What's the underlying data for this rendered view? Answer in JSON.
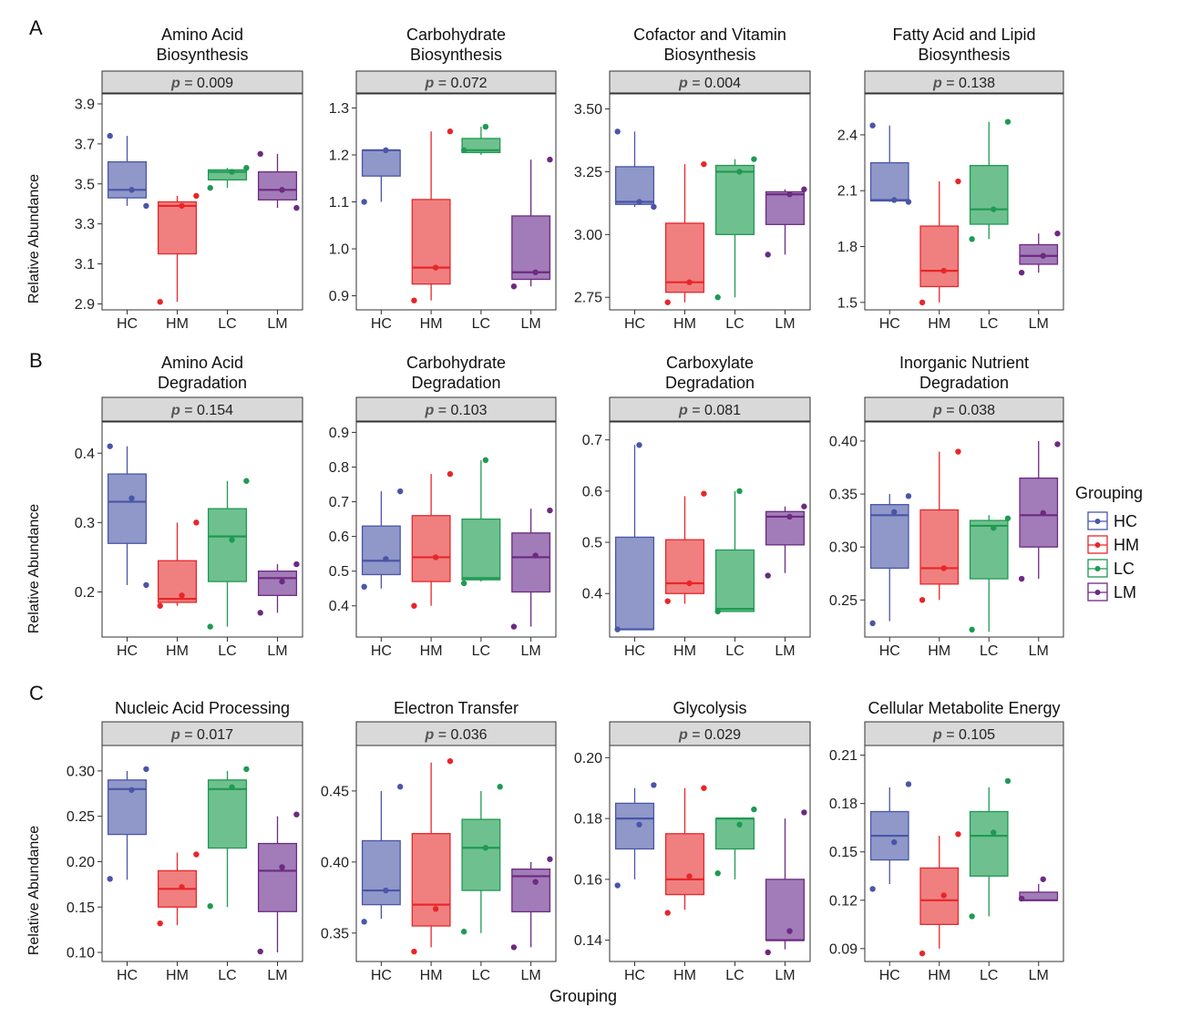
{
  "figure": {
    "panel_letters": [
      "A",
      "B",
      "C"
    ],
    "y_axis_label": "Relative Abundance",
    "x_axis_label": "Grouping",
    "p_prefix": "p",
    "stray_annotation": "p"
  },
  "legend": {
    "title": "Grouping",
    "entries": [
      {
        "name": "HC",
        "color": "#4a55a8",
        "fill": "#8f98c8"
      },
      {
        "name": "HM",
        "color": "#e8262a",
        "fill": "#f08080"
      },
      {
        "name": "LC",
        "color": "#1e9a52",
        "fill": "#6fc08f"
      },
      {
        "name": "LM",
        "color": "#6c2a80",
        "fill": "#a27cb8"
      }
    ]
  },
  "chart_data": [
    {
      "type": "box",
      "row": "A",
      "title": "Amino Acid\nBiosynthesis",
      "p_value": "= 0.009",
      "yticks": [
        2.9,
        3.1,
        3.3,
        3.5,
        3.7,
        3.9
      ],
      "ytick_labels": [
        "2.9",
        "3.1",
        "3.3",
        "3.5",
        "3.7",
        "3.9"
      ],
      "ylim": [
        2.87,
        3.95
      ],
      "categories": [
        "HC",
        "HM",
        "LC",
        "LM"
      ],
      "boxes": [
        {
          "group": "HC",
          "min": 3.39,
          "q1": 3.43,
          "median": 3.47,
          "q3": 3.61,
          "max": 3.74,
          "points": [
            3.74,
            3.47,
            3.39
          ]
        },
        {
          "group": "HM",
          "min": 2.91,
          "q1": 3.15,
          "median": 3.39,
          "q3": 3.41,
          "max": 3.44,
          "points": [
            2.91,
            3.39,
            3.44
          ]
        },
        {
          "group": "LC",
          "min": 3.48,
          "q1": 3.52,
          "median": 3.56,
          "q3": 3.57,
          "max": 3.58,
          "points": [
            3.48,
            3.56,
            3.58
          ]
        },
        {
          "group": "LM",
          "min": 3.38,
          "q1": 3.42,
          "median": 3.47,
          "q3": 3.56,
          "max": 3.65,
          "points": [
            3.65,
            3.47,
            3.38
          ]
        }
      ]
    },
    {
      "type": "box",
      "row": "A",
      "title": "Carbohydrate\nBiosynthesis",
      "p_value": "= 0.072",
      "yticks": [
        0.9,
        1.0,
        1.1,
        1.2,
        1.3
      ],
      "ytick_labels": [
        "0.9",
        "1.0",
        "1.1",
        "1.2",
        "1.3"
      ],
      "ylim": [
        0.87,
        1.33
      ],
      "categories": [
        "HC",
        "HM",
        "LC",
        "LM"
      ],
      "boxes": [
        {
          "group": "HC",
          "min": 1.1,
          "q1": 1.155,
          "median": 1.21,
          "q3": 1.21,
          "max": 1.21,
          "points": [
            1.1,
            1.21
          ]
        },
        {
          "group": "HM",
          "min": 0.89,
          "q1": 0.925,
          "median": 0.96,
          "q3": 1.105,
          "max": 1.25,
          "points": [
            0.89,
            0.96,
            1.25
          ]
        },
        {
          "group": "LC",
          "min": 1.2,
          "q1": 1.205,
          "median": 1.21,
          "q3": 1.235,
          "max": 1.26,
          "points": [
            1.21,
            1.26
          ]
        },
        {
          "group": "LM",
          "min": 0.92,
          "q1": 0.935,
          "median": 0.95,
          "q3": 1.07,
          "max": 1.19,
          "points": [
            0.92,
            0.95,
            1.19
          ]
        }
      ]
    },
    {
      "type": "box",
      "row": "A",
      "title": "Cofactor and Vitamin\nBiosynthesis",
      "p_value": "= 0.004",
      "yticks": [
        2.75,
        3.0,
        3.25,
        3.5
      ],
      "ytick_labels": [
        "2.75",
        "3.00",
        "3.25",
        "3.50"
      ],
      "ylim": [
        2.7,
        3.56
      ],
      "categories": [
        "HC",
        "HM",
        "LC",
        "LM"
      ],
      "boxes": [
        {
          "group": "HC",
          "min": 3.11,
          "q1": 3.12,
          "median": 3.13,
          "q3": 3.27,
          "max": 3.41,
          "points": [
            3.41,
            3.13,
            3.11
          ]
        },
        {
          "group": "HM",
          "min": 2.73,
          "q1": 2.77,
          "median": 2.81,
          "q3": 3.045,
          "max": 3.28,
          "points": [
            2.73,
            2.81,
            3.28
          ]
        },
        {
          "group": "LC",
          "min": 2.75,
          "q1": 3.0,
          "median": 3.25,
          "q3": 3.275,
          "max": 3.3,
          "points": [
            2.75,
            3.25,
            3.3
          ]
        },
        {
          "group": "LM",
          "min": 2.92,
          "q1": 3.04,
          "median": 3.16,
          "q3": 3.17,
          "max": 3.18,
          "points": [
            2.92,
            3.16,
            3.18
          ]
        }
      ]
    },
    {
      "type": "box",
      "row": "A",
      "title": "Fatty Acid and Lipid\nBiosynthesis",
      "p_value": "= 0.138",
      "yticks": [
        1.5,
        1.8,
        2.1,
        2.4
      ],
      "ytick_labels": [
        "1.5",
        "1.8",
        "2.1",
        "2.4"
      ],
      "ylim": [
        1.46,
        2.62
      ],
      "categories": [
        "HC",
        "HM",
        "LC",
        "LM"
      ],
      "boxes": [
        {
          "group": "HC",
          "min": 2.04,
          "q1": 2.045,
          "median": 2.05,
          "q3": 2.25,
          "max": 2.45,
          "points": [
            2.45,
            2.05,
            2.04
          ]
        },
        {
          "group": "HM",
          "min": 1.5,
          "q1": 1.585,
          "median": 1.67,
          "q3": 1.91,
          "max": 2.15,
          "points": [
            1.5,
            1.67,
            2.15
          ]
        },
        {
          "group": "LC",
          "min": 1.84,
          "q1": 1.92,
          "median": 2.0,
          "q3": 2.235,
          "max": 2.47,
          "points": [
            1.84,
            2.0,
            2.47
          ]
        },
        {
          "group": "LM",
          "min": 1.66,
          "q1": 1.705,
          "median": 1.75,
          "q3": 1.81,
          "max": 1.87,
          "points": [
            1.66,
            1.75,
            1.87
          ]
        }
      ]
    },
    {
      "type": "box",
      "row": "B",
      "title": "Amino Acid\nDegradation",
      "p_value": "= 0.154",
      "yticks": [
        0.2,
        0.3,
        0.4
      ],
      "ytick_labels": [
        "0.2",
        "0.3",
        "0.4"
      ],
      "ylim": [
        0.135,
        0.445
      ],
      "categories": [
        "HC",
        "HM",
        "LC",
        "LM"
      ],
      "boxes": [
        {
          "group": "HC",
          "min": 0.21,
          "q1": 0.27,
          "median": 0.33,
          "q3": 0.37,
          "max": 0.41,
          "points": [
            0.41,
            0.335,
            0.21
          ]
        },
        {
          "group": "HM",
          "min": 0.18,
          "q1": 0.185,
          "median": 0.19,
          "q3": 0.245,
          "max": 0.3,
          "points": [
            0.18,
            0.195,
            0.3
          ]
        },
        {
          "group": "LC",
          "min": 0.15,
          "q1": 0.215,
          "median": 0.28,
          "q3": 0.32,
          "max": 0.36,
          "points": [
            0.15,
            0.275,
            0.36
          ]
        },
        {
          "group": "LM",
          "min": 0.17,
          "q1": 0.195,
          "median": 0.22,
          "q3": 0.23,
          "max": 0.24,
          "points": [
            0.17,
            0.215,
            0.24
          ]
        }
      ]
    },
    {
      "type": "box",
      "row": "B",
      "title": "Carbohydrate\nDegradation",
      "p_value": "= 0.103",
      "yticks": [
        0.4,
        0.5,
        0.6,
        0.7,
        0.8,
        0.9
      ],
      "ytick_labels": [
        "0.4",
        "0.5",
        "0.6",
        "0.7",
        "0.8",
        "0.9"
      ],
      "ylim": [
        0.31,
        0.93
      ],
      "categories": [
        "HC",
        "HM",
        "LC",
        "LM"
      ],
      "boxes": [
        {
          "group": "HC",
          "min": 0.45,
          "q1": 0.49,
          "median": 0.53,
          "q3": 0.63,
          "max": 0.73,
          "points": [
            0.455,
            0.535,
            0.73
          ]
        },
        {
          "group": "HM",
          "min": 0.4,
          "q1": 0.47,
          "median": 0.54,
          "q3": 0.66,
          "max": 0.78,
          "points": [
            0.4,
            0.54,
            0.78
          ]
        },
        {
          "group": "LC",
          "min": 0.47,
          "q1": 0.475,
          "median": 0.48,
          "q3": 0.65,
          "max": 0.82,
          "points": [
            0.465,
            0.82
          ]
        },
        {
          "group": "LM",
          "min": 0.34,
          "q1": 0.44,
          "median": 0.54,
          "q3": 0.61,
          "max": 0.68,
          "points": [
            0.34,
            0.545,
            0.675
          ]
        }
      ]
    },
    {
      "type": "box",
      "row": "B",
      "title": "Carboxylate\nDegradation",
      "p_value": "= 0.081",
      "yticks": [
        0.4,
        0.5,
        0.6,
        0.7
      ],
      "ytick_labels": [
        "0.4",
        "0.5",
        "0.6",
        "0.7"
      ],
      "ylim": [
        0.315,
        0.735
      ],
      "categories": [
        "HC",
        "HM",
        "LC",
        "LM"
      ],
      "boxes": [
        {
          "group": "HC",
          "min": 0.33,
          "q1": 0.33,
          "median": 0.33,
          "q3": 0.51,
          "max": 0.69,
          "points": [
            0.33,
            0.69
          ]
        },
        {
          "group": "HM",
          "min": 0.38,
          "q1": 0.4,
          "median": 0.42,
          "q3": 0.505,
          "max": 0.59,
          "points": [
            0.385,
            0.42,
            0.595
          ]
        },
        {
          "group": "LC",
          "min": 0.365,
          "q1": 0.365,
          "median": 0.37,
          "q3": 0.485,
          "max": 0.6,
          "points": [
            0.365,
            0.6
          ]
        },
        {
          "group": "LM",
          "min": 0.44,
          "q1": 0.495,
          "median": 0.55,
          "q3": 0.56,
          "max": 0.57,
          "points": [
            0.435,
            0.55,
            0.57
          ]
        }
      ]
    },
    {
      "type": "box",
      "row": "B",
      "title": "Inorganic Nutrient\nDegradation",
      "p_value": "= 0.038",
      "yticks": [
        0.25,
        0.3,
        0.35,
        0.4
      ],
      "ytick_labels": [
        "0.25",
        "0.30",
        "0.35",
        "0.40"
      ],
      "ylim": [
        0.215,
        0.418
      ],
      "categories": [
        "HC",
        "HM",
        "LC",
        "LM"
      ],
      "boxes": [
        {
          "group": "HC",
          "min": 0.23,
          "q1": 0.28,
          "median": 0.33,
          "q3": 0.34,
          "max": 0.35,
          "points": [
            0.228,
            0.333,
            0.348
          ]
        },
        {
          "group": "HM",
          "min": 0.25,
          "q1": 0.265,
          "median": 0.28,
          "q3": 0.335,
          "max": 0.39,
          "points": [
            0.25,
            0.28,
            0.39
          ]
        },
        {
          "group": "LC",
          "min": 0.22,
          "q1": 0.27,
          "median": 0.32,
          "q3": 0.325,
          "max": 0.33,
          "points": [
            0.222,
            0.318,
            0.327
          ]
        },
        {
          "group": "LM",
          "min": 0.27,
          "q1": 0.3,
          "median": 0.33,
          "q3": 0.365,
          "max": 0.4,
          "points": [
            0.27,
            0.332,
            0.397
          ]
        }
      ]
    },
    {
      "type": "box",
      "row": "C",
      "title": "Nucleic Acid Processing",
      "p_value": "= 0.017",
      "yticks": [
        0.1,
        0.15,
        0.2,
        0.25,
        0.3
      ],
      "ytick_labels": [
        "0.10",
        "0.15",
        "0.20",
        "0.25",
        "0.30"
      ],
      "ylim": [
        0.09,
        0.328
      ],
      "categories": [
        "HC",
        "HM",
        "LC",
        "LM"
      ],
      "boxes": [
        {
          "group": "HC",
          "min": 0.18,
          "q1": 0.23,
          "median": 0.28,
          "q3": 0.29,
          "max": 0.3,
          "points": [
            0.181,
            0.279,
            0.302
          ]
        },
        {
          "group": "HM",
          "min": 0.13,
          "q1": 0.15,
          "median": 0.17,
          "q3": 0.19,
          "max": 0.21,
          "points": [
            0.132,
            0.172,
            0.208
          ]
        },
        {
          "group": "LC",
          "min": 0.15,
          "q1": 0.215,
          "median": 0.28,
          "q3": 0.29,
          "max": 0.3,
          "points": [
            0.151,
            0.282,
            0.302
          ]
        },
        {
          "group": "LM",
          "min": 0.1,
          "q1": 0.145,
          "median": 0.19,
          "q3": 0.22,
          "max": 0.25,
          "points": [
            0.101,
            0.194,
            0.252
          ]
        }
      ]
    },
    {
      "type": "box",
      "row": "C",
      "title": "Electron Transfer",
      "p_value": "= 0.036",
      "yticks": [
        0.35,
        0.4,
        0.45
      ],
      "ytick_labels": [
        "0.35",
        "0.40",
        "0.45"
      ],
      "ylim": [
        0.33,
        0.482
      ],
      "categories": [
        "HC",
        "HM",
        "LC",
        "LM"
      ],
      "boxes": [
        {
          "group": "HC",
          "min": 0.36,
          "q1": 0.37,
          "median": 0.38,
          "q3": 0.415,
          "max": 0.45,
          "points": [
            0.358,
            0.38,
            0.453
          ]
        },
        {
          "group": "HM",
          "min": 0.34,
          "q1": 0.355,
          "median": 0.37,
          "q3": 0.42,
          "max": 0.47,
          "points": [
            0.337,
            0.367,
            0.471
          ]
        },
        {
          "group": "LC",
          "min": 0.35,
          "q1": 0.38,
          "median": 0.41,
          "q3": 0.43,
          "max": 0.45,
          "points": [
            0.351,
            0.41,
            0.453
          ]
        },
        {
          "group": "LM",
          "min": 0.34,
          "q1": 0.365,
          "median": 0.39,
          "q3": 0.395,
          "max": 0.4,
          "points": [
            0.34,
            0.386,
            0.402
          ]
        }
      ]
    },
    {
      "type": "box",
      "row": "C",
      "title": "Glycolysis",
      "p_value": "= 0.029",
      "yticks": [
        0.14,
        0.16,
        0.18,
        0.2
      ],
      "ytick_labels": [
        "0.14",
        "0.16",
        "0.18",
        "0.20"
      ],
      "ylim": [
        0.133,
        0.204
      ],
      "categories": [
        "HC",
        "HM",
        "LC",
        "LM"
      ],
      "boxes": [
        {
          "group": "HC",
          "min": 0.16,
          "q1": 0.17,
          "median": 0.18,
          "q3": 0.185,
          "max": 0.19,
          "points": [
            0.158,
            0.178,
            0.191
          ]
        },
        {
          "group": "HM",
          "min": 0.15,
          "q1": 0.155,
          "median": 0.16,
          "q3": 0.175,
          "max": 0.19,
          "points": [
            0.149,
            0.161,
            0.19
          ]
        },
        {
          "group": "LC",
          "min": 0.16,
          "q1": 0.17,
          "median": 0.18,
          "q3": 0.18,
          "max": 0.18,
          "points": [
            0.162,
            0.178,
            0.183
          ]
        },
        {
          "group": "LM",
          "min": 0.137,
          "q1": 0.14,
          "median": 0.14,
          "q3": 0.16,
          "max": 0.18,
          "points": [
            0.136,
            0.143,
            0.182
          ]
        }
      ]
    },
    {
      "type": "box",
      "row": "C",
      "title": "Cellular Metabolite Energy",
      "p_value": "= 0.105",
      "yticks": [
        0.09,
        0.12,
        0.15,
        0.18,
        0.21
      ],
      "ytick_labels": [
        "0.09",
        "0.12",
        "0.15",
        "0.18",
        "0.21"
      ],
      "ylim": [
        0.082,
        0.216
      ],
      "categories": [
        "HC",
        "HM",
        "LC",
        "LM"
      ],
      "boxes": [
        {
          "group": "HC",
          "min": 0.13,
          "q1": 0.145,
          "median": 0.16,
          "q3": 0.175,
          "max": 0.19,
          "points": [
            0.127,
            0.156,
            0.192
          ]
        },
        {
          "group": "HM",
          "min": 0.09,
          "q1": 0.105,
          "median": 0.12,
          "q3": 0.14,
          "max": 0.16,
          "points": [
            0.087,
            0.123,
            0.161
          ]
        },
        {
          "group": "LC",
          "min": 0.11,
          "q1": 0.135,
          "median": 0.16,
          "q3": 0.175,
          "max": 0.19,
          "points": [
            0.11,
            0.162,
            0.194
          ]
        },
        {
          "group": "LM",
          "min": 0.12,
          "q1": 0.12,
          "median": 0.12,
          "q3": 0.125,
          "max": 0.13,
          "points": [
            0.121,
            0.133
          ]
        }
      ]
    }
  ]
}
